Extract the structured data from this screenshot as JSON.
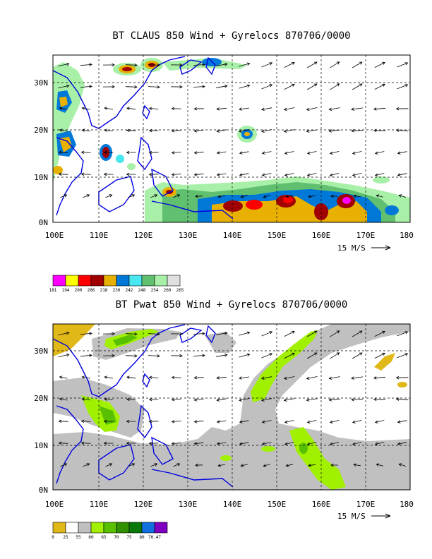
{
  "panels": [
    {
      "title": "BT CLAUS 850 Wind + Gyrelocs 870706/0000",
      "lat_labels": [
        "30N",
        "20N",
        "10N",
        "0N"
      ],
      "lon_labels": [
        "100E",
        "110E",
        "120E",
        "130E",
        "140E",
        "150E",
        "160E",
        "170E",
        "180"
      ],
      "scale_label": "15 M/S",
      "legend": {
        "colors": [
          "#ff00ff",
          "#ffff00",
          "#ff0000",
          "#a00000",
          "#e8b000",
          "#0078d8",
          "#48e8f0",
          "#60c070",
          "#a8f0a8",
          "#e0e0e0"
        ],
        "labels": [
          "181",
          "194",
          "200",
          "206",
          "218",
          "230",
          "242",
          "248",
          "254",
          "260",
          "265"
        ]
      }
    },
    {
      "title": "BT Pwat 850 Wind + Gyrelocs 870706/0000",
      "lat_labels": [
        "30N",
        "20N",
        "10N",
        "0N"
      ],
      "lon_labels": [
        "100E",
        "110E",
        "120E",
        "130E",
        "140E",
        "150E",
        "160E",
        "170E",
        "180"
      ],
      "scale_label": "15 M/S",
      "legend": {
        "colors": [
          "#e0b818",
          "#ffffff",
          "#c0c0c0",
          "#a0f000",
          "#58c000",
          "#309000",
          "#087808",
          "#1070e0",
          "#8000c0"
        ],
        "labels": [
          "0",
          "25",
          "55",
          "60",
          "65",
          "70",
          "75",
          "80",
          "70.47"
        ]
      }
    }
  ]
}
